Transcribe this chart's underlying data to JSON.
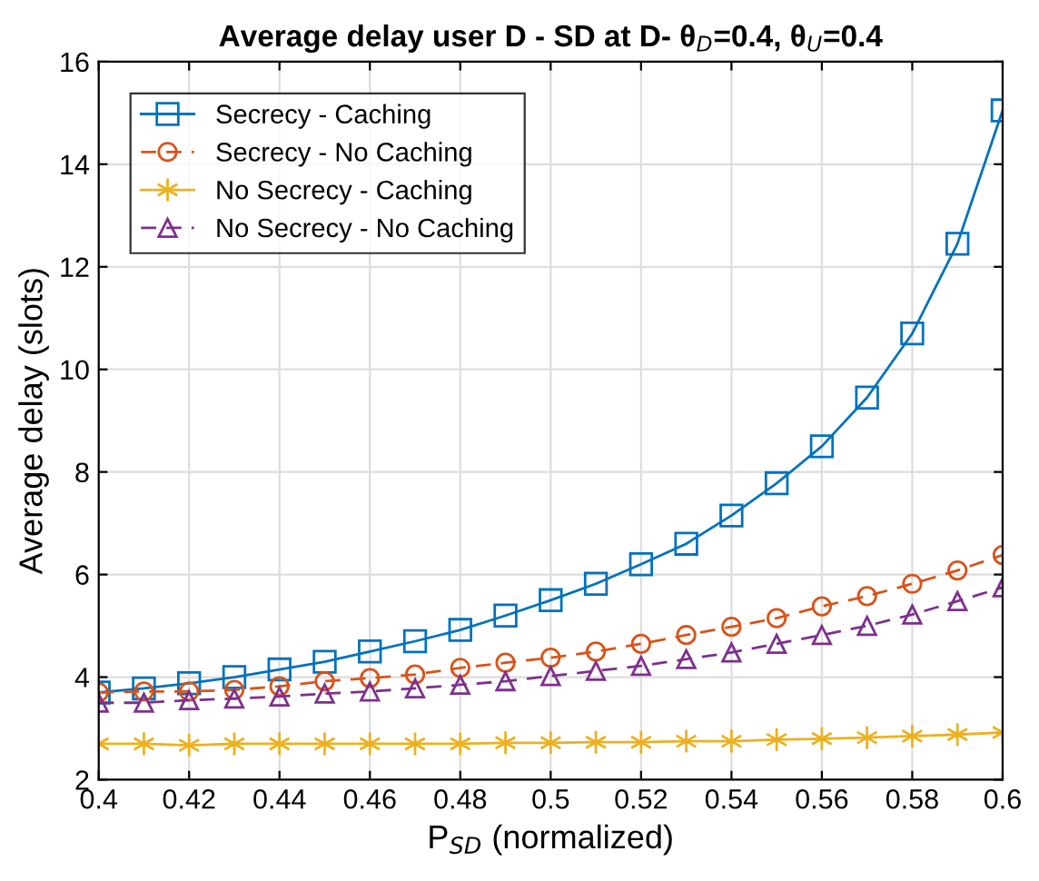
{
  "chart_data": {
    "type": "line",
    "title": "Average delay user D - SD at D- θ$_{D}$=0.4, θ$_{U}$=0.4",
    "xlabel": "P$_{SD}$ (normalized)",
    "ylabel": "Average delay (slots)",
    "x": [
      0.4,
      0.41,
      0.42,
      0.43,
      0.44,
      0.45,
      0.46,
      0.47,
      0.48,
      0.49,
      0.5,
      0.51,
      0.52,
      0.53,
      0.54,
      0.55,
      0.56,
      0.57,
      0.58,
      0.59,
      0.6
    ],
    "series": [
      {
        "name": "Secrecy - Caching",
        "color": "#0072bd",
        "marker": "square",
        "line_style": "solid",
        "values": [
          3.7,
          3.78,
          3.88,
          4.0,
          4.15,
          4.3,
          4.5,
          4.7,
          4.92,
          5.2,
          5.5,
          5.82,
          6.2,
          6.6,
          7.15,
          7.78,
          8.5,
          9.45,
          10.7,
          12.45,
          15.05
        ]
      },
      {
        "name": "Secrecy - No Caching",
        "color": "#d95319",
        "marker": "circle",
        "line_style": "dashed",
        "values": [
          3.7,
          3.72,
          3.72,
          3.75,
          3.82,
          3.92,
          3.98,
          4.05,
          4.18,
          4.28,
          4.38,
          4.5,
          4.65,
          4.82,
          4.98,
          5.15,
          5.38,
          5.58,
          5.82,
          6.08,
          6.38
        ]
      },
      {
        "name": "No Secrecy - Caching",
        "color": "#edb120",
        "marker": "cross",
        "line_style": "solid",
        "values": [
          2.7,
          2.7,
          2.67,
          2.7,
          2.7,
          2.7,
          2.7,
          2.7,
          2.7,
          2.72,
          2.72,
          2.73,
          2.73,
          2.75,
          2.75,
          2.78,
          2.8,
          2.82,
          2.85,
          2.88,
          2.92
        ]
      },
      {
        "name": "No Secrecy - No Caching",
        "color": "#7e2f8e",
        "marker": "triangle",
        "line_style": "dashed",
        "values": [
          3.5,
          3.5,
          3.55,
          3.58,
          3.62,
          3.68,
          3.72,
          3.78,
          3.85,
          3.92,
          4.02,
          4.12,
          4.22,
          4.35,
          4.48,
          4.65,
          4.82,
          5.0,
          5.22,
          5.48,
          5.75
        ]
      }
    ],
    "xlim": [
      0.4,
      0.6
    ],
    "xticks": [
      0.4,
      0.42,
      0.44,
      0.46,
      0.48,
      0.5,
      0.52,
      0.54,
      0.56,
      0.58,
      0.6
    ],
    "ylim": [
      2,
      16
    ],
    "yticks": [
      2,
      4,
      6,
      8,
      10,
      12,
      14,
      16
    ],
    "grid": true,
    "legend": "top left"
  }
}
